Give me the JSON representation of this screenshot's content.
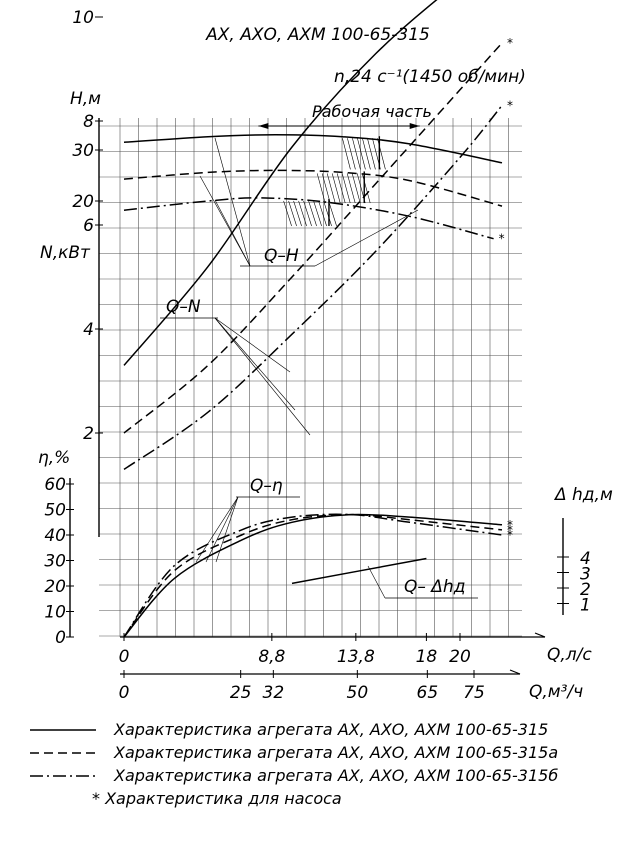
{
  "chart_data": {
    "type": "line",
    "title": "АХ, АХО, АХМ 100-65-315",
    "subtitle": "n,24 c⁻¹(1450 об/мин)",
    "working_range_label": "Рабочая часть",
    "working_range_q_ls": [
      8.0,
      17.6
    ],
    "x_axis": {
      "label": "Q,л/с",
      "ticks": [
        "0",
        "8,8",
        "13,8",
        "18",
        "20"
      ],
      "tick_values": [
        0,
        8.8,
        13.8,
        18,
        20
      ],
      "range": [
        0,
        23
      ]
    },
    "x2_axis": {
      "label": "Q,м³/ч",
      "ticks": [
        "0",
        "25",
        "32",
        "50",
        "65",
        "75"
      ],
      "tick_values": [
        0,
        25,
        32,
        50,
        65,
        75
      ]
    },
    "axes": {
      "H": {
        "label": "H,м",
        "ticks": [
          "20",
          "30"
        ],
        "tick_values": [
          20,
          30
        ],
        "range": [
          14,
          35
        ]
      },
      "N": {
        "label": "N,кВт",
        "ticks": [
          "2",
          "4",
          "6",
          "8",
          "10"
        ],
        "tick_values": [
          2,
          4,
          6,
          8,
          10
        ],
        "range": [
          0,
          11
        ]
      },
      "eta": {
        "label": "η,%",
        "ticks": [
          "0",
          "10",
          "20",
          "30",
          "40",
          "50",
          "60"
        ],
        "tick_values": [
          0,
          10,
          20,
          30,
          40,
          50,
          60
        ],
        "range": [
          0,
          60
        ]
      },
      "dh": {
        "label": "Δ hд,м",
        "ticks": [
          "1",
          "2",
          "3",
          "4"
        ],
        "tick_values": [
          1,
          2,
          3,
          4
        ],
        "range": [
          0,
          4.5
        ]
      }
    },
    "curve_labels": {
      "QH": "Q–H",
      "QN": "Q–N",
      "Qeta": "Q–η",
      "Qdh": "Q– Δhд"
    },
    "pump_mark": "*",
    "series": [
      {
        "name": "Характеристика агрегата АХ, АХО, АХМ 100-65-315",
        "dash": "solid",
        "H": [
          [
            0,
            31.5
          ],
          [
            5,
            32.6
          ],
          [
            9,
            33.0
          ],
          [
            13,
            32.6
          ],
          [
            17,
            31.2
          ],
          [
            22.5,
            27.5
          ]
        ],
        "N": [
          [
            0,
            3.3
          ],
          [
            5,
            5.2
          ],
          [
            10,
            7.5
          ],
          [
            15,
            9.3
          ],
          [
            20,
            10.7
          ],
          [
            22.5,
            11.3
          ]
        ],
        "eta": [
          [
            0,
            0
          ],
          [
            3,
            23
          ],
          [
            7,
            38
          ],
          [
            10,
            45
          ],
          [
            13.5,
            48
          ],
          [
            17,
            47
          ],
          [
            22.5,
            44
          ]
        ]
      },
      {
        "name": "Характеристика агрегата АХ, АХО, АХМ 100-65-315а",
        "dash": "dashed",
        "H": [
          [
            0,
            24.3
          ],
          [
            5,
            25.6
          ],
          [
            9,
            26.0
          ],
          [
            13,
            25.6
          ],
          [
            17,
            24.0
          ],
          [
            22.5,
            19.0
          ]
        ],
        "N": [
          [
            0,
            2.0
          ],
          [
            5,
            3.3
          ],
          [
            10,
            5.0
          ],
          [
            15,
            6.8
          ],
          [
            20,
            8.6
          ],
          [
            22.5,
            9.5
          ]
        ],
        "eta": [
          [
            0,
            0
          ],
          [
            3,
            26
          ],
          [
            7,
            40
          ],
          [
            10,
            46
          ],
          [
            13.5,
            48
          ],
          [
            17,
            46
          ],
          [
            22.5,
            42
          ]
        ]
      },
      {
        "name": "Характеристика агрегата АХ, АХО, АХМ 100-65-315б",
        "dash": "dash-dot",
        "H": [
          [
            0,
            18.2
          ],
          [
            5,
            20.0
          ],
          [
            8,
            20.6
          ],
          [
            12,
            19.8
          ],
          [
            17,
            17.0
          ],
          [
            22,
            12.6
          ]
        ],
        "N": [
          [
            0,
            1.3
          ],
          [
            5,
            2.4
          ],
          [
            10,
            3.9
          ],
          [
            15,
            5.5
          ],
          [
            20,
            7.3
          ],
          [
            22.5,
            8.3
          ]
        ],
        "eta": [
          [
            0,
            0
          ],
          [
            3,
            28
          ],
          [
            7,
            42
          ],
          [
            10,
            47
          ],
          [
            13.5,
            48
          ],
          [
            17,
            45
          ],
          [
            22.5,
            40
          ]
        ]
      }
    ],
    "npsh_curve": [
      [
        10,
        2.3
      ],
      [
        18,
        3.9
      ]
    ],
    "legend": [
      {
        "dash": "solid",
        "text": "Характеристика агрегата АХ, АХО, АХМ 100-65-315"
      },
      {
        "dash": "dashed",
        "text": "Характеристика агрегата АХ, АХО, АХМ 100-65-315а"
      },
      {
        "dash": "dash-dot",
        "text": "Характеристика агрегата АХ, АХО, АХМ 100-65-315б"
      }
    ],
    "footnote": "* Характеристика для насоса"
  }
}
